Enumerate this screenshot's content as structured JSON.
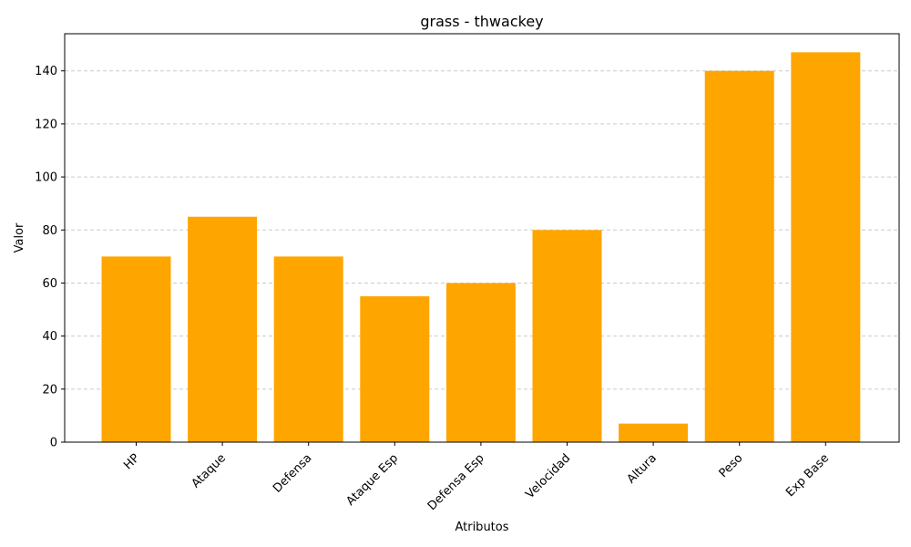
{
  "chart_data": {
    "type": "bar",
    "title": "grass - thwackey",
    "xlabel": "Atributos",
    "ylabel": "Valor",
    "categories": [
      "HP",
      "Ataque",
      "Defensa",
      "Ataque Esp",
      "Defensa Esp",
      "Velocidad",
      "Altura",
      "Peso",
      "Exp Base"
    ],
    "values": [
      70,
      85,
      70,
      55,
      60,
      80,
      7,
      140,
      147
    ],
    "ylim": [
      0,
      154
    ],
    "yticks": [
      0,
      20,
      40,
      60,
      80,
      100,
      120,
      140
    ],
    "grid": "y-dashed",
    "bar_color": "#ffa500",
    "legend": "none"
  }
}
